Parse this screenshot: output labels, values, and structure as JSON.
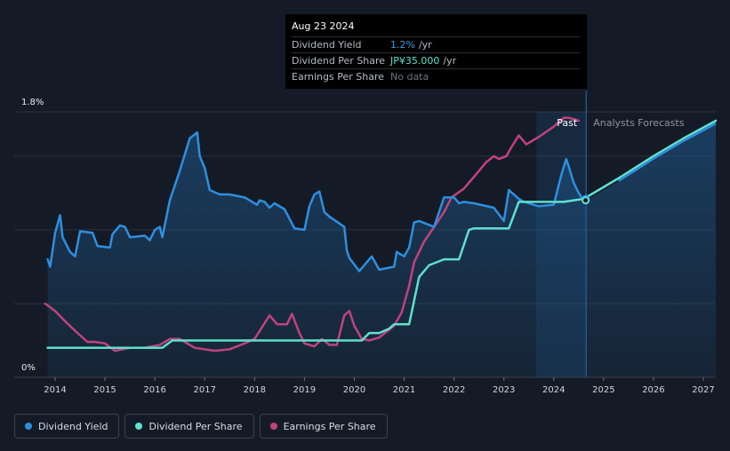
{
  "tooltip": {
    "date": "Aug 23 2024",
    "rows": [
      {
        "label": "Dividend Yield",
        "value": "1.2%",
        "unit": "/yr"
      },
      {
        "label": "Dividend Per Share",
        "value": "JP¥35.000",
        "unit": "/yr"
      },
      {
        "label": "Earnings Per Share",
        "value": "No data",
        "unit": ""
      }
    ]
  },
  "legend": [
    {
      "label": "Dividend Yield",
      "color": "#2e8fe0"
    },
    {
      "label": "Dividend Per Share",
      "color": "#5fe0cf"
    },
    {
      "label": "Earnings Per Share",
      "color": "#c1427e"
    }
  ],
  "chart_data": {
    "type": "line",
    "title": "",
    "xlabel": "",
    "ylabel": "",
    "x_ticks": [
      "2014",
      "2015",
      "2016",
      "2017",
      "2018",
      "2019",
      "2020",
      "2021",
      "2022",
      "2023",
      "2024",
      "2025",
      "2026",
      "2027"
    ],
    "y_ticks": [
      "1.8%",
      "0%"
    ],
    "xlim": [
      2013.7,
      2027.25
    ],
    "ylim": [
      0,
      1.8
    ],
    "past_start": 2023.65,
    "forecast_start": 2024.65,
    "region_labels": {
      "past": "Past",
      "forecast": "Analysts Forecasts"
    },
    "series": [
      {
        "name": "Dividend Yield",
        "color": "#2e8fe0",
        "x": [
          2013.85,
          2013.9,
          2014.0,
          2014.1,
          2014.15,
          2014.3,
          2014.4,
          2014.5,
          2014.75,
          2014.85,
          2015.1,
          2015.15,
          2015.3,
          2015.4,
          2015.5,
          2015.8,
          2015.9,
          2016.0,
          2016.1,
          2016.15,
          2016.3,
          2016.5,
          2016.7,
          2016.85,
          2016.9,
          2017.0,
          2017.1,
          2017.3,
          2017.5,
          2017.8,
          2018.05,
          2018.1,
          2018.2,
          2018.3,
          2018.4,
          2018.6,
          2018.8,
          2019.0,
          2019.1,
          2019.2,
          2019.3,
          2019.4,
          2019.5,
          2019.8,
          2019.85,
          2019.9,
          2020.1,
          2020.2,
          2020.35,
          2020.5,
          2020.8,
          2020.85,
          2021.0,
          2021.1,
          2021.2,
          2021.3,
          2021.6,
          2021.8,
          2022.0,
          2022.1,
          2022.2,
          2022.4,
          2022.8,
          2023.0,
          2023.1,
          2023.3,
          2023.4,
          2023.7,
          2024.0,
          2024.15,
          2024.25,
          2024.3,
          2024.4,
          2024.5,
          2024.6
        ],
        "values": [
          0.8,
          0.75,
          0.98,
          1.1,
          0.95,
          0.85,
          0.82,
          0.99,
          0.98,
          0.89,
          0.88,
          0.97,
          1.03,
          1.02,
          0.95,
          0.96,
          0.93,
          1.0,
          1.02,
          0.95,
          1.2,
          1.4,
          1.62,
          1.66,
          1.5,
          1.42,
          1.27,
          1.24,
          1.24,
          1.22,
          1.17,
          1.2,
          1.19,
          1.15,
          1.18,
          1.14,
          1.01,
          1.0,
          1.16,
          1.24,
          1.26,
          1.12,
          1.09,
          1.02,
          0.86,
          0.81,
          0.72,
          0.76,
          0.82,
          0.73,
          0.75,
          0.85,
          0.82,
          0.88,
          1.05,
          1.06,
          1.02,
          1.22,
          1.22,
          1.18,
          1.19,
          1.18,
          1.15,
          1.06,
          1.27,
          1.21,
          1.19,
          1.16,
          1.17,
          1.37,
          1.48,
          1.43,
          1.32,
          1.25,
          1.2
        ]
      },
      {
        "name": "Dividend Per Share",
        "color": "#5fe0cf",
        "x": [
          2013.85,
          2016.15,
          2016.35,
          2020.15,
          2020.3,
          2020.5,
          2020.7,
          2020.8,
          2021.1,
          2021.3,
          2021.5,
          2021.8,
          2022.1,
          2022.3,
          2022.4,
          2023.1,
          2023.3,
          2024.2,
          2024.6,
          2025.3,
          2026.0,
          2026.6,
          2027.25
        ],
        "values": [
          0.2,
          0.2,
          0.25,
          0.25,
          0.3,
          0.3,
          0.33,
          0.36,
          0.36,
          0.68,
          0.76,
          0.8,
          0.8,
          1.0,
          1.01,
          1.01,
          1.19,
          1.19,
          1.21,
          1.35,
          1.5,
          1.62,
          1.74
        ]
      },
      {
        "name": "Earnings Per Share",
        "color": "#c1427e",
        "x": [
          2013.8,
          2014.0,
          2014.2,
          2014.45,
          2014.65,
          2014.8,
          2015.0,
          2015.2,
          2015.5,
          2015.8,
          2016.1,
          2016.3,
          2016.5,
          2016.8,
          2017.0,
          2017.2,
          2017.5,
          2017.8,
          2018.0,
          2018.15,
          2018.3,
          2018.45,
          2018.65,
          2018.75,
          2018.9,
          2019.0,
          2019.2,
          2019.35,
          2019.5,
          2019.65,
          2019.8,
          2019.9,
          2020.0,
          2020.15,
          2020.3,
          2020.5,
          2020.8,
          2020.95,
          2021.0,
          2021.1,
          2021.2,
          2021.4,
          2021.6,
          2021.8,
          2021.95,
          2022.2,
          2022.45,
          2022.65,
          2022.8,
          2022.9,
          2023.05,
          2023.15,
          2023.3,
          2023.45,
          2023.7,
          2024.0,
          2024.2,
          2024.3,
          2024.5
        ],
        "values": [
          0.5,
          0.45,
          0.38,
          0.3,
          0.24,
          0.24,
          0.23,
          0.18,
          0.2,
          0.2,
          0.22,
          0.26,
          0.26,
          0.2,
          0.19,
          0.18,
          0.19,
          0.23,
          0.26,
          0.34,
          0.42,
          0.36,
          0.36,
          0.43,
          0.3,
          0.23,
          0.21,
          0.26,
          0.22,
          0.22,
          0.42,
          0.45,
          0.35,
          0.26,
          0.25,
          0.27,
          0.35,
          0.44,
          0.5,
          0.62,
          0.78,
          0.92,
          1.02,
          1.12,
          1.22,
          1.28,
          1.38,
          1.46,
          1.5,
          1.48,
          1.5,
          1.56,
          1.64,
          1.58,
          1.63,
          1.7,
          1.76,
          1.76,
          1.74
        ]
      }
    ],
    "markers": [
      {
        "series": "Dividend Yield",
        "x": 2024.64,
        "y": 1.21
      },
      {
        "series": "Dividend Per Share",
        "x": 2024.64,
        "y": 1.2
      }
    ]
  }
}
